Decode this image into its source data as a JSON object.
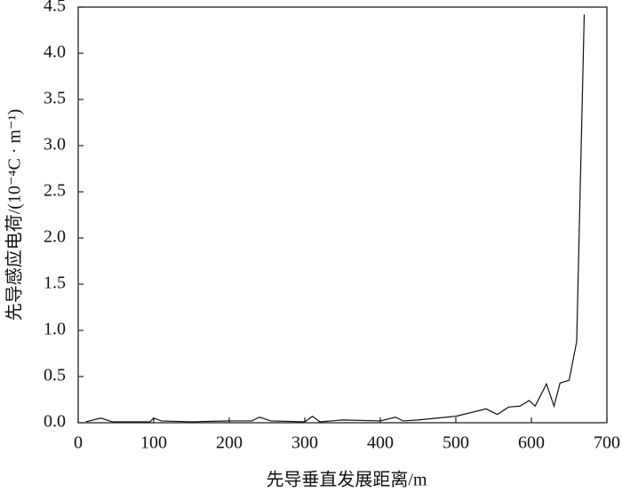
{
  "chart_data": {
    "type": "line",
    "xlabel": "先导垂直发展距离/m",
    "ylabel": "先导感应电荷/(10⁻⁴C · m⁻¹)",
    "x": [
      10,
      30,
      45,
      95,
      100,
      110,
      150,
      200,
      230,
      240,
      255,
      300,
      310,
      320,
      350,
      400,
      420,
      430,
      450,
      500,
      540,
      555,
      570,
      585,
      597,
      605,
      620,
      630,
      638,
      650,
      660,
      670
    ],
    "series": [
      {
        "color": "#111111",
        "values": [
          0.01,
          0.05,
          0.01,
          0.01,
          0.05,
          0.02,
          0.01,
          0.02,
          0.02,
          0.06,
          0.02,
          0.01,
          0.07,
          0.01,
          0.03,
          0.02,
          0.06,
          0.02,
          0.03,
          0.07,
          0.15,
          0.09,
          0.17,
          0.18,
          0.24,
          0.18,
          0.42,
          0.18,
          0.43,
          0.46,
          0.88,
          4.42
        ]
      }
    ],
    "xlim": [
      0,
      700
    ],
    "xticks": [
      0,
      100,
      200,
      300,
      400,
      500,
      600,
      700
    ],
    "ylim": [
      0,
      4.5
    ],
    "yticks": [
      {
        "value": 0,
        "label": "0.0"
      },
      0.5,
      {
        "value": 1,
        "label": "1.0"
      },
      1.5,
      {
        "value": 2,
        "label": "2.0"
      },
      2.5,
      {
        "value": 3,
        "label": "3.0"
      },
      3.5,
      {
        "value": 4,
        "label": "4.0"
      },
      4.5
    ],
    "grid": false
  }
}
